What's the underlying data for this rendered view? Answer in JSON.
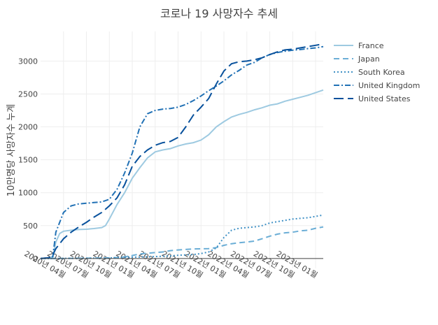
{
  "chart_data": {
    "type": "line",
    "title": "코로나 19 사망자수 추세",
    "xlabel": "",
    "ylabel": "10만명당 사망자수 누계",
    "x_ticks": [
      "2020년 04월",
      "2020년 07월",
      "2020년 10월",
      "2021년 01월",
      "2021년 04월",
      "2021년 07월",
      "2021년 10월",
      "2022년 01월",
      "2022년 04월",
      "2022년 07월",
      "2022년 10월",
      "2023년 01월"
    ],
    "y_ticks": [
      0,
      500,
      1000,
      1500,
      2000,
      2500,
      3000
    ],
    "ylim": [
      -150,
      3450
    ],
    "xlim": [
      0,
      37
    ],
    "grid": true,
    "legend_position": "top-right",
    "colors": {
      "France": "#9ecae1",
      "Japan": "#6baed6",
      "South Korea": "#4292c6",
      "United Kingdom": "#2171b5",
      "United States": "#08519c"
    },
    "series": [
      {
        "name": "France",
        "dash": "solid",
        "points": [
          [
            0,
            0
          ],
          [
            1,
            5
          ],
          [
            1.6,
            20
          ],
          [
            2,
            250
          ],
          [
            2.5,
            380
          ],
          [
            3,
            415
          ],
          [
            4,
            430
          ],
          [
            5,
            440
          ],
          [
            6,
            445
          ],
          [
            7,
            455
          ],
          [
            8,
            470
          ],
          [
            8.5,
            500
          ],
          [
            9,
            600
          ],
          [
            10,
            820
          ],
          [
            11,
            1000
          ],
          [
            12,
            1220
          ],
          [
            13,
            1380
          ],
          [
            14,
            1530
          ],
          [
            15,
            1620
          ],
          [
            16,
            1650
          ],
          [
            17,
            1670
          ],
          [
            18,
            1710
          ],
          [
            19,
            1740
          ],
          [
            20,
            1760
          ],
          [
            21,
            1800
          ],
          [
            22,
            1880
          ],
          [
            23,
            2000
          ],
          [
            24,
            2080
          ],
          [
            25,
            2150
          ],
          [
            26,
            2190
          ],
          [
            27,
            2220
          ],
          [
            28,
            2260
          ],
          [
            29,
            2290
          ],
          [
            30,
            2330
          ],
          [
            31,
            2350
          ],
          [
            32,
            2390
          ],
          [
            33,
            2420
          ],
          [
            34,
            2450
          ],
          [
            35,
            2480
          ],
          [
            36,
            2520
          ],
          [
            37,
            2560
          ]
        ]
      },
      {
        "name": "Japan",
        "dash": "dash",
        "points": [
          [
            0,
            0
          ],
          [
            3,
            2
          ],
          [
            6,
            5
          ],
          [
            9,
            8
          ],
          [
            10,
            15
          ],
          [
            11,
            25
          ],
          [
            12,
            45
          ],
          [
            13,
            70
          ],
          [
            14,
            80
          ],
          [
            16,
            100
          ],
          [
            17,
            120
          ],
          [
            18,
            130
          ],
          [
            20,
            145
          ],
          [
            22,
            150
          ],
          [
            23,
            165
          ],
          [
            24,
            200
          ],
          [
            25,
            225
          ],
          [
            26,
            240
          ],
          [
            27,
            250
          ],
          [
            28,
            265
          ],
          [
            29,
            300
          ],
          [
            30,
            340
          ],
          [
            31,
            370
          ],
          [
            32,
            390
          ],
          [
            33,
            400
          ],
          [
            34,
            420
          ],
          [
            35,
            430
          ],
          [
            36,
            460
          ],
          [
            37,
            480
          ]
        ]
      },
      {
        "name": "South Korea",
        "dash": "dot",
        "points": [
          [
            0,
            0
          ],
          [
            3,
            2
          ],
          [
            6,
            5
          ],
          [
            9,
            8
          ],
          [
            12,
            20
          ],
          [
            15,
            30
          ],
          [
            17,
            40
          ],
          [
            18,
            50
          ],
          [
            19,
            55
          ],
          [
            20,
            60
          ],
          [
            21,
            75
          ],
          [
            22,
            100
          ],
          [
            23,
            160
          ],
          [
            24,
            320
          ],
          [
            25,
            430
          ],
          [
            26,
            460
          ],
          [
            27,
            470
          ],
          [
            28,
            480
          ],
          [
            29,
            500
          ],
          [
            30,
            540
          ],
          [
            31,
            560
          ],
          [
            32,
            580
          ],
          [
            33,
            600
          ],
          [
            34,
            610
          ],
          [
            35,
            620
          ],
          [
            36,
            640
          ],
          [
            37,
            660
          ]
        ]
      },
      {
        "name": "United Kingdom",
        "dash": "dashdot",
        "points": [
          [
            0,
            0
          ],
          [
            1,
            10
          ],
          [
            1.6,
            30
          ],
          [
            2,
            400
          ],
          [
            3,
            700
          ],
          [
            4,
            800
          ],
          [
            5,
            830
          ],
          [
            6,
            840
          ],
          [
            7,
            850
          ],
          [
            8,
            860
          ],
          [
            9,
            900
          ],
          [
            10,
            1050
          ],
          [
            11,
            1300
          ],
          [
            12,
            1600
          ],
          [
            13,
            2000
          ],
          [
            14,
            2200
          ],
          [
            15,
            2250
          ],
          [
            16,
            2270
          ],
          [
            17,
            2280
          ],
          [
            18,
            2300
          ],
          [
            19,
            2340
          ],
          [
            20,
            2400
          ],
          [
            21,
            2470
          ],
          [
            22,
            2550
          ],
          [
            23,
            2620
          ],
          [
            24,
            2700
          ],
          [
            25,
            2790
          ],
          [
            26,
            2860
          ],
          [
            27,
            2940
          ],
          [
            28,
            2980
          ],
          [
            29,
            3050
          ],
          [
            30,
            3100
          ],
          [
            31,
            3130
          ],
          [
            32,
            3150
          ],
          [
            33,
            3165
          ],
          [
            34,
            3175
          ],
          [
            35,
            3190
          ],
          [
            36,
            3200
          ],
          [
            37,
            3220
          ]
        ]
      },
      {
        "name": "United States",
        "dash": "longdash",
        "points": [
          [
            0,
            0
          ],
          [
            1,
            10
          ],
          [
            1.5,
            30
          ],
          [
            2,
            150
          ],
          [
            3,
            300
          ],
          [
            4,
            400
          ],
          [
            5,
            480
          ],
          [
            6,
            550
          ],
          [
            7,
            630
          ],
          [
            8,
            700
          ],
          [
            9,
            800
          ],
          [
            10,
            920
          ],
          [
            11,
            1120
          ],
          [
            12,
            1400
          ],
          [
            13,
            1550
          ],
          [
            14,
            1650
          ],
          [
            15,
            1720
          ],
          [
            16,
            1760
          ],
          [
            17,
            1780
          ],
          [
            18,
            1840
          ],
          [
            19,
            2000
          ],
          [
            20,
            2180
          ],
          [
            21,
            2300
          ],
          [
            22,
            2430
          ],
          [
            23,
            2650
          ],
          [
            24,
            2850
          ],
          [
            25,
            2960
          ],
          [
            26,
            2990
          ],
          [
            27,
            3000
          ],
          [
            28,
            3020
          ],
          [
            29,
            3050
          ],
          [
            30,
            3100
          ],
          [
            31,
            3140
          ],
          [
            32,
            3170
          ],
          [
            33,
            3180
          ],
          [
            34,
            3200
          ],
          [
            35,
            3220
          ],
          [
            36,
            3240
          ],
          [
            37,
            3260
          ]
        ]
      }
    ]
  }
}
